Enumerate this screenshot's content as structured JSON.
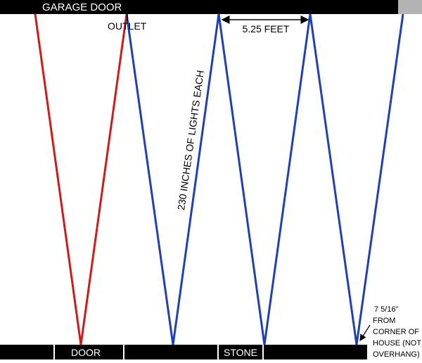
{
  "header": {
    "title": "GARAGE DOOR"
  },
  "labels": {
    "outlet": "OUTLET",
    "spacing": "5.25 FEET",
    "lights": "230 INCHES OF LIGHTS EACH"
  },
  "ground": {
    "sections": [
      "DOOR",
      "STONE"
    ]
  },
  "note": {
    "lines": [
      "7 5/16”",
      "FROM",
      "CORNER OF",
      "HOUSE (NOT",
      "OVERHANG)"
    ]
  }
}
